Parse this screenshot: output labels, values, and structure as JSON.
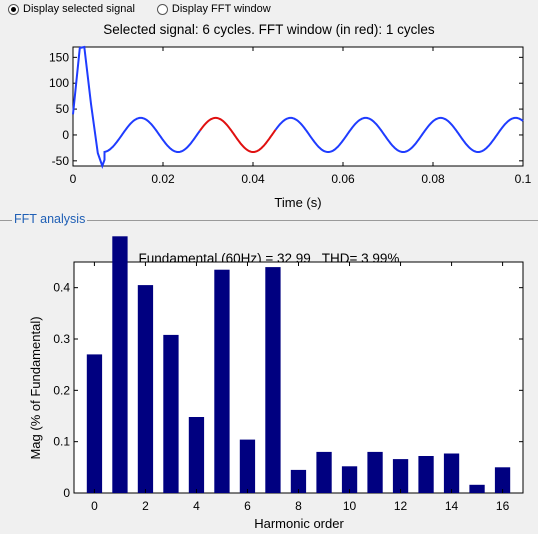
{
  "controls": {
    "radio_selected_label": "Display selected signal",
    "radio_fft_label": "Display FFT window",
    "selected": "signal"
  },
  "signal_plot": {
    "title": "Selected signal: 6 cycles. FFT window (in red): 1 cycles",
    "xlabel": "Time (s)",
    "x_ticks": [
      "0",
      "0.02",
      "0.04",
      "0.06",
      "0.08",
      "0.1"
    ],
    "y_ticks": [
      "150",
      "100",
      "50",
      "0",
      "-50"
    ],
    "colors": {
      "signal": "#1f3cff",
      "fft_window": "#e01010"
    }
  },
  "fft_panel": {
    "label": "FFT analysis",
    "title": "Fundamental (60Hz) = 32.99 , THD= 3.99%"
  },
  "chart_data": [
    {
      "type": "line",
      "title": "Selected signal: 6 cycles. FFT window (in red): 1 cycles",
      "xlabel": "Time (s)",
      "ylabel": "",
      "xlim": [
        0,
        0.1
      ],
      "ylim": [
        -60,
        170
      ],
      "frequency_hz": 60,
      "steady_amplitude": 33,
      "fft_window": [
        0.0283,
        0.045
      ],
      "transient_points": [
        [
          0,
          40
        ],
        [
          0.0015,
          168
        ],
        [
          0.0025,
          170
        ],
        [
          0.004,
          60
        ],
        [
          0.0055,
          -35
        ],
        [
          0.0065,
          -65
        ],
        [
          0.007,
          -48
        ]
      ],
      "grid": false
    },
    {
      "type": "bar",
      "title": "Fundamental (60Hz) = 32.99 , THD= 3.99%",
      "xlabel": "Harmonic order",
      "ylabel": "Mag (% of Fundamental)",
      "categories": [
        0,
        1,
        2,
        3,
        4,
        5,
        6,
        7,
        8,
        9,
        10,
        11,
        12,
        13,
        14,
        15,
        16
      ],
      "values": [
        0.27,
        0.5,
        0.405,
        0.308,
        0.148,
        0.435,
        0.104,
        0.44,
        0.045,
        0.08,
        0.052,
        0.08,
        0.066,
        0.072,
        0.077,
        0.016,
        0.05
      ],
      "x_ticks": [
        "0",
        "2",
        "4",
        "6",
        "8",
        "10",
        "12",
        "14",
        "16"
      ],
      "y_ticks": [
        "0",
        "0.1",
        "0.2",
        "0.3",
        "0.4"
      ],
      "ylim": [
        0,
        0.45
      ],
      "bar_color": "#000080",
      "grid": false
    }
  ]
}
